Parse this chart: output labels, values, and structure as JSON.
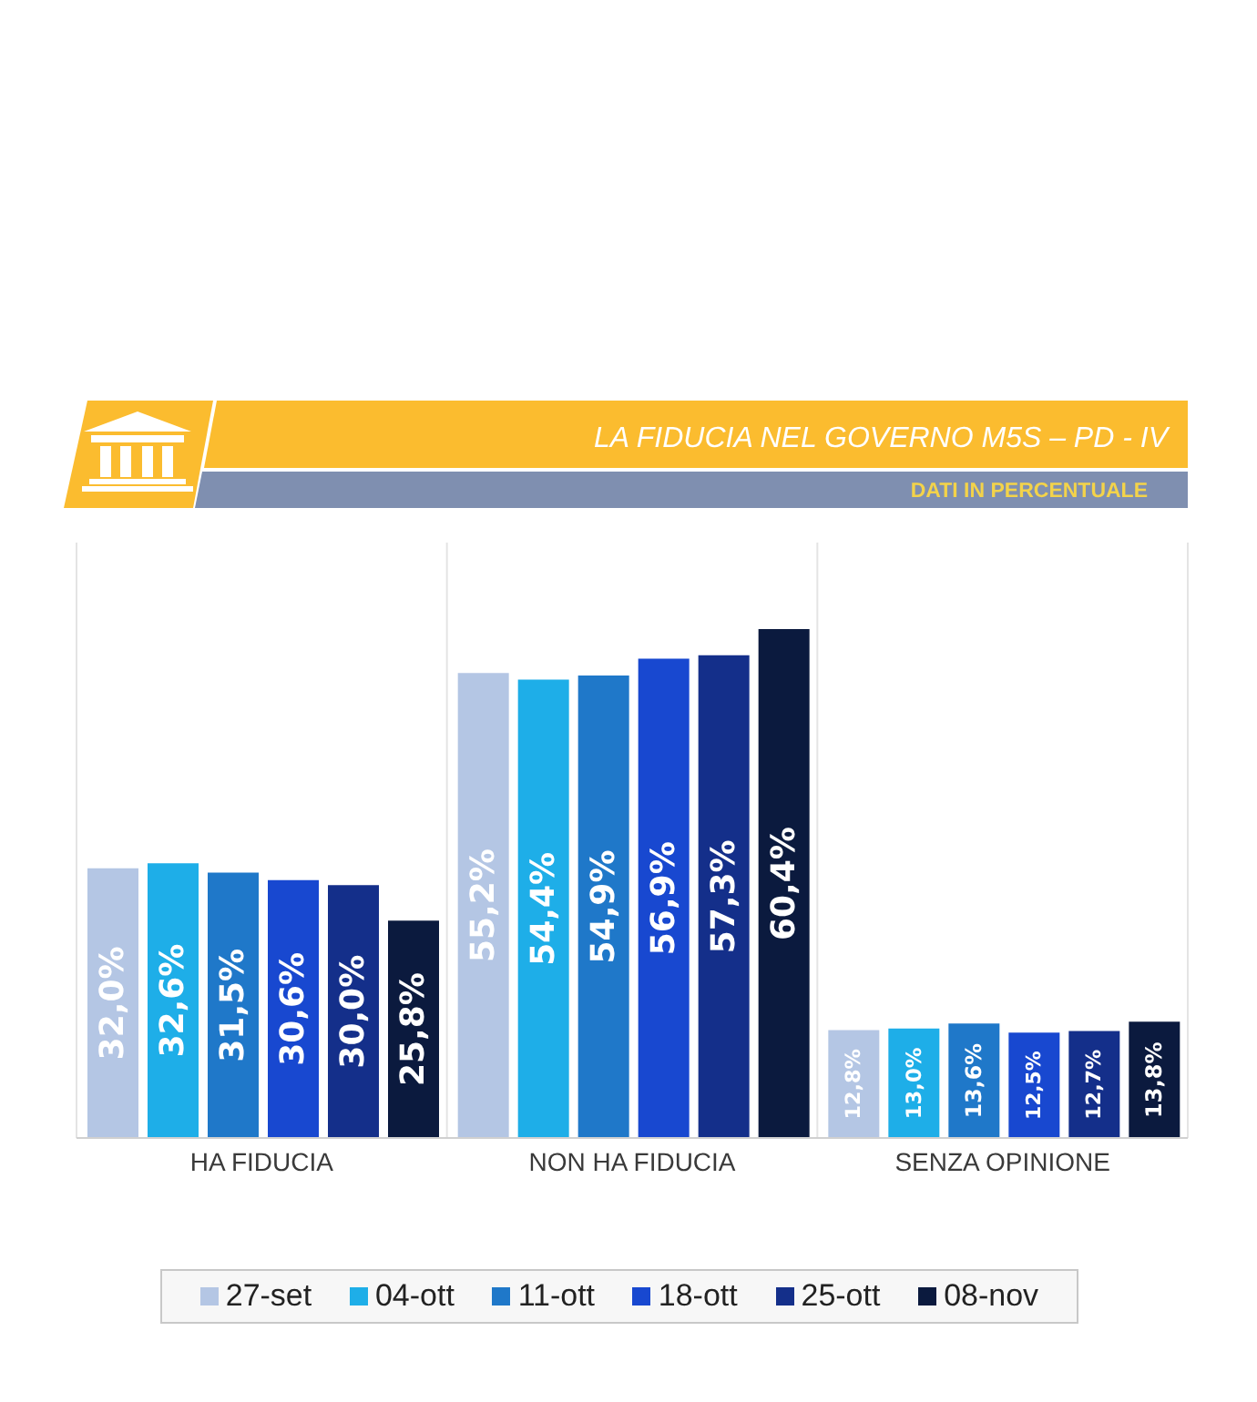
{
  "chart_data": {
    "type": "bar",
    "title": "LA FIDUCIA NEL GOVERNO M5S – PD - IV",
    "subtitle": "DATI IN PERCENTUALE",
    "categories": [
      "HA FIDUCIA",
      "NON HA FIDUCIA",
      "SENZA OPINIONE"
    ],
    "series": [
      {
        "name": "27-set",
        "color": "#b4c6e4",
        "values": [
          32.0,
          55.2,
          12.8
        ],
        "value_labels": [
          "32,0%",
          "55,2%",
          "12,8%"
        ]
      },
      {
        "name": "04-ott",
        "color": "#1eaee8",
        "values": [
          32.6,
          54.4,
          13.0
        ],
        "value_labels": [
          "32,6%",
          "54,4%",
          "13,0%"
        ]
      },
      {
        "name": "11-ott",
        "color": "#1f78c9",
        "values": [
          31.5,
          54.9,
          13.6
        ],
        "value_labels": [
          "31,5%",
          "54,9%",
          "13,6%"
        ]
      },
      {
        "name": "18-ott",
        "color": "#1848d0",
        "values": [
          30.6,
          56.9,
          12.5
        ],
        "value_labels": [
          "30,6%",
          "56,9%",
          "12,5%"
        ]
      },
      {
        "name": "25-ott",
        "color": "#142f8a",
        "values": [
          30.0,
          57.3,
          12.7
        ],
        "value_labels": [
          "30,0%",
          "57,3%",
          "12,7%"
        ]
      },
      {
        "name": "08-nov",
        "color": "#0b1a3e",
        "values": [
          25.8,
          60.4,
          13.8
        ],
        "value_labels": [
          "25,8%",
          "60,4%",
          "13,8%"
        ]
      }
    ],
    "legend": "bottom",
    "grid": "x"
  }
}
